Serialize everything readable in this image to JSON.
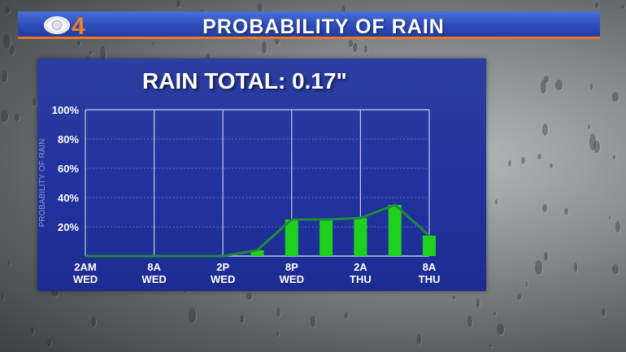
{
  "banner": {
    "logo_text": "4",
    "title": "PROBABILITY OF RAIN"
  },
  "colors": {
    "banner_blue": "#2c4cbb",
    "banner_orange": "#e8782a",
    "panel_blue": "#2233a0",
    "bar_green": "#1fd01f",
    "line_green": "#1f8a3c"
  },
  "chart_data": {
    "type": "bar",
    "title": "RAIN TOTAL: 0.17\"",
    "ylabel": "PROBABILITY OF RAIN",
    "ylim": [
      0,
      100
    ],
    "yticks": [
      "20%",
      "40%",
      "60%",
      "80%",
      "100%"
    ],
    "x_tick_labels": [
      {
        "top": "2AM",
        "bottom": "WED"
      },
      {
        "top": "8A",
        "bottom": "WED"
      },
      {
        "top": "2P",
        "bottom": "WED"
      },
      {
        "top": "8P",
        "bottom": "WED"
      },
      {
        "top": "2A",
        "bottom": "THU"
      },
      {
        "top": "8A",
        "bottom": "THU"
      }
    ],
    "bars": [
      {
        "hour": 15,
        "value": 4
      },
      {
        "hour": 18,
        "value": 25
      },
      {
        "hour": 21,
        "value": 25
      },
      {
        "hour": 24,
        "value": 26
      },
      {
        "hour": 27,
        "value": 35
      },
      {
        "hour": 30,
        "value": 14
      }
    ],
    "line": [
      {
        "hour": 0,
        "value": 0
      },
      {
        "hour": 12,
        "value": 0
      },
      {
        "hour": 15,
        "value": 4
      },
      {
        "hour": 18,
        "value": 25
      },
      {
        "hour": 21,
        "value": 25
      },
      {
        "hour": 24,
        "value": 26
      },
      {
        "hour": 27,
        "value": 35
      },
      {
        "hour": 30,
        "value": 14
      }
    ],
    "grid": true
  }
}
